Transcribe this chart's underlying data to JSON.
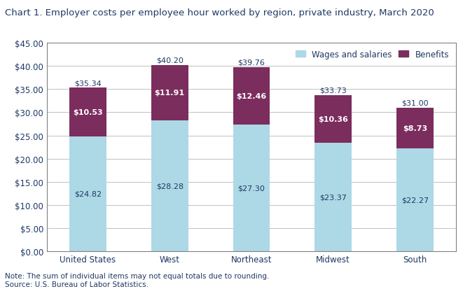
{
  "title": "Chart 1. Employer costs per employee hour worked by region, private industry, March 2020",
  "categories": [
    "United States",
    "West",
    "Northeast",
    "Midwest",
    "South"
  ],
  "wages": [
    24.82,
    28.28,
    27.3,
    23.37,
    22.27
  ],
  "benefits": [
    10.53,
    11.91,
    12.46,
    10.36,
    8.73
  ],
  "totals": [
    35.34,
    40.2,
    39.76,
    33.73,
    31.0
  ],
  "wages_color": "#ADD8E6",
  "benefits_color": "#7B2D5E",
  "title_color": "#1F3864",
  "text_color": "#1F3864",
  "label_color_wages": "#1F3864",
  "label_color_benefits": "#FFFFFF",
  "label_color_total": "#1F3864",
  "grid_color": "#C0C0C0",
  "ylim": [
    0,
    45
  ],
  "yticks": [
    0,
    5,
    10,
    15,
    20,
    25,
    30,
    35,
    40,
    45
  ],
  "note": "Note: The sum of individual items may not equal totals due to rounding.",
  "source": "Source: U.S. Bureau of Labor Statistics.",
  "legend_wages": "Wages and salaries",
  "legend_benefits": "Benefits",
  "title_fontsize": 9.5,
  "tick_fontsize": 8.5,
  "label_fontsize": 8,
  "note_fontsize": 7.5,
  "bar_width": 0.45
}
